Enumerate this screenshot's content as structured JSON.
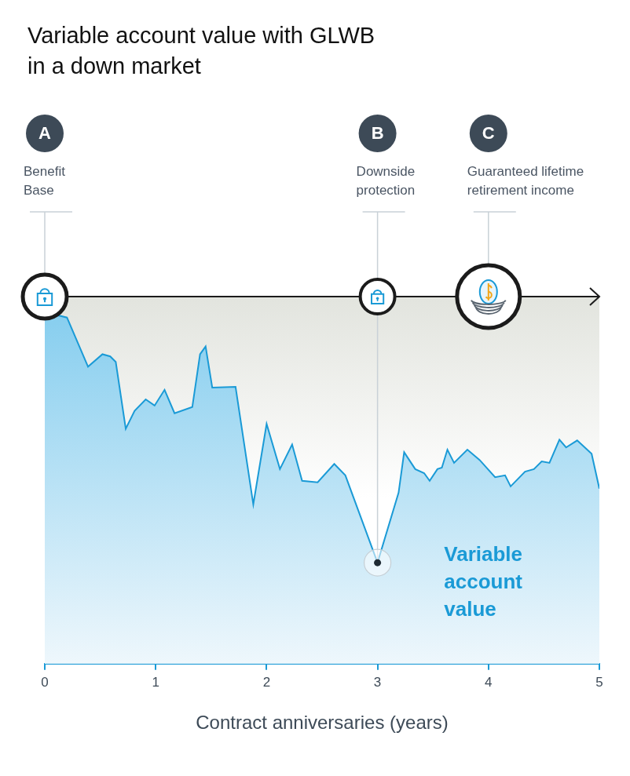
{
  "chart_data": {
    "type": "line",
    "title": "Variable account value with GLWB in a down market",
    "x_label": "Contract anniversaries (years)",
    "x": [
      0,
      0.2,
      0.39,
      0.52,
      0.59,
      0.64,
      0.73,
      0.81,
      0.91,
      0.99,
      1.08,
      1.17,
      1.33,
      1.4,
      1.45,
      1.51,
      1.72,
      1.88,
      2.0,
      2.12,
      2.23,
      2.32,
      2.46,
      2.61,
      2.71,
      3.0,
      3.19,
      3.24,
      3.34,
      3.42,
      3.47,
      3.54,
      3.58,
      3.63,
      3.69,
      3.81,
      3.92,
      4.06,
      4.15,
      4.2,
      4.33,
      4.41,
      4.48,
      4.55,
      4.64,
      4.7,
      4.8,
      4.93,
      5.0
    ],
    "series": [
      {
        "name": "Variable account value",
        "color": "#1a9ad6",
        "values": [
          95.8,
          94.3,
          80.9,
          84.3,
          83.7,
          82.2,
          64.0,
          68.9,
          72.0,
          70.3,
          74.6,
          68.2,
          69.9,
          84.3,
          86.4,
          75.2,
          75.4,
          43.4,
          65.3,
          53.0,
          59.7,
          49.8,
          49.4,
          54.4,
          51.3,
          27.5,
          46.6,
          57.6,
          53.0,
          51.9,
          49.8,
          53.0,
          53.4,
          58.3,
          54.7,
          58.3,
          55.5,
          50.8,
          51.3,
          48.3,
          52.3,
          53.0,
          55.1,
          54.7,
          61.0,
          58.9,
          60.8,
          57.2,
          47.7
        ]
      }
    ],
    "xlim": [
      0,
      5
    ],
    "xticks": [
      0,
      1,
      2,
      3,
      4,
      5
    ],
    "ylim": [
      0,
      100
    ],
    "yticks": [],
    "tick_labels": "x",
    "grid": false,
    "benefit_base": 100,
    "annotations": [
      {
        "letter": "A",
        "label": "Benefit Base",
        "x": 0
      },
      {
        "letter": "B",
        "label": "Downside protection",
        "x": 3
      },
      {
        "letter": "C",
        "label": "Guaranteed lifetime retirement income",
        "x": 4
      }
    ]
  }
}
